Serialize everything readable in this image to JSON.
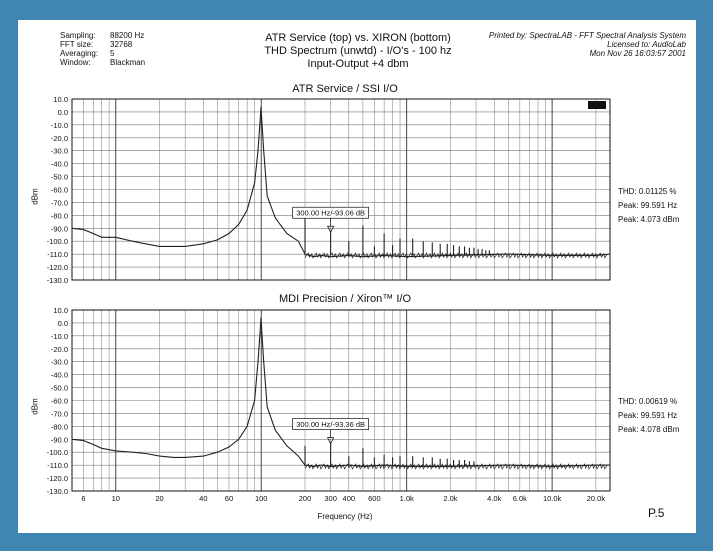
{
  "header": {
    "meta": [
      {
        "label": "Sampling:",
        "value": "88200 Hz"
      },
      {
        "label": "FFT size:",
        "value": "32768"
      },
      {
        "label": "Averaging:",
        "value": "5"
      },
      {
        "label": "Window:",
        "value": "Blackman"
      }
    ],
    "title_line1": "ATR Service (top) vs. XIRON (bottom)",
    "title_line2": "THD Spectrum (unwtd) - I/O's - 100 hz",
    "title_line3": "Input-Output  +4 dbm",
    "printed_by": "Printed by: SpectraLAB - FFT Spectral Analysis System",
    "licensed_to": "Licensed to: AudioLab",
    "print_date": "Mon Nov 26 16:03:57 2001"
  },
  "footer": {
    "page_number": "P.5"
  },
  "colors": {
    "frame": "#3f86b3",
    "trace": "#222222",
    "grid": "#777777"
  },
  "chart_data": [
    {
      "type": "line",
      "title": "ATR Service / SSI I/O",
      "xlabel": "",
      "ylabel": "dBm",
      "x_scale": "log",
      "xlim": [
        5,
        25000
      ],
      "ylim": [
        -130,
        10
      ],
      "yticks": [
        10,
        0,
        -10,
        -20,
        -30,
        -40,
        -50,
        -60,
        -70,
        -80,
        -90,
        -100,
        -110,
        -120,
        -130
      ],
      "ytick_labels": [
        "10.0",
        "0.0",
        "-10.0",
        "-20.0",
        "-30.0",
        "-40.0",
        "-50.0",
        "-60.0",
        "-70.0",
        "-80.0",
        "-90.0",
        "-100.0",
        "-110.0",
        "-120.0",
        "-130.0"
      ],
      "grid": true,
      "series": [
        {
          "values": [
            [
              5,
              -90
            ],
            [
              6,
              -91
            ],
            [
              7,
              -94
            ],
            [
              8,
              -97
            ],
            [
              10,
              -97
            ],
            [
              13,
              -100
            ],
            [
              16,
              -102
            ],
            [
              20,
              -104
            ],
            [
              25,
              -104
            ],
            [
              30,
              -104
            ],
            [
              40,
              -102
            ],
            [
              50,
              -99
            ],
            [
              60,
              -94
            ],
            [
              70,
              -87
            ],
            [
              80,
              -76
            ],
            [
              90,
              -55
            ],
            [
              95,
              -30
            ],
            [
              98,
              -8
            ],
            [
              99.6,
              4
            ],
            [
              101,
              -8
            ],
            [
              104,
              -30
            ],
            [
              110,
              -65
            ],
            [
              125,
              -82
            ],
            [
              150,
              -94
            ],
            [
              180,
              -100
            ],
            [
              200,
              -110
            ],
            [
              230,
              -112
            ],
            [
              260,
              -111
            ],
            [
              300,
              -112
            ],
            [
              400,
              -111
            ],
            [
              500,
              -112
            ],
            [
              700,
              -111
            ],
            [
              1000,
              -112
            ],
            [
              2000,
              -111
            ],
            [
              5000,
              -110
            ],
            [
              10000,
              -111
            ],
            [
              20000,
              -111
            ],
            [
              25000,
              -110
            ]
          ]
        }
      ],
      "harmonics": [
        {
          "x": 200,
          "y": -78
        },
        {
          "x": 300,
          "y": -93
        },
        {
          "x": 400,
          "y": -100
        },
        {
          "x": 500,
          "y": -88
        },
        {
          "x": 600,
          "y": -104
        },
        {
          "x": 700,
          "y": -94
        },
        {
          "x": 800,
          "y": -103
        },
        {
          "x": 900,
          "y": -98
        },
        {
          "x": 1100,
          "y": -98
        },
        {
          "x": 1300,
          "y": -100
        },
        {
          "x": 1500,
          "y": -101
        },
        {
          "x": 1700,
          "y": -102
        },
        {
          "x": 1900,
          "y": -102
        },
        {
          "x": 2100,
          "y": -103
        },
        {
          "x": 2300,
          "y": -104
        },
        {
          "x": 2500,
          "y": -104
        },
        {
          "x": 2700,
          "y": -105
        },
        {
          "x": 2900,
          "y": -105
        },
        {
          "x": 3100,
          "y": -106
        },
        {
          "x": 3300,
          "y": -106
        },
        {
          "x": 3500,
          "y": -107
        },
        {
          "x": 3700,
          "y": -107
        }
      ],
      "marker": {
        "x": 300,
        "y": -93.06,
        "label": "300.00 Hz/-93.06 dB"
      },
      "stats": [
        "THD: 0.01125 %",
        "Peak: 99.591 Hz",
        "Peak: 4.073 dBm"
      ]
    },
    {
      "type": "line",
      "title": "MDI Precision / Xiron™ I/O",
      "xlabel": "Frequency (Hz)",
      "ylabel": "dBm",
      "x_scale": "log",
      "xlim": [
        5,
        25000
      ],
      "ylim": [
        -130,
        10
      ],
      "yticks": [
        10,
        0,
        -10,
        -20,
        -30,
        -40,
        -50,
        -60,
        -70,
        -80,
        -90,
        -100,
        -110,
        -120,
        -130
      ],
      "ytick_labels": [
        "10.0",
        "0.0",
        "-10.0",
        "-20.0",
        "-30.0",
        "-40.0",
        "-50.0",
        "-60.0",
        "-70.0",
        "-80.0",
        "-90.0",
        "-100.0",
        "-110.0",
        "-120.0",
        "-130.0"
      ],
      "xticks": [
        6,
        10,
        20,
        40,
        60,
        100,
        200,
        300,
        400,
        600,
        1000,
        2000,
        4000,
        6000,
        10000,
        20000
      ],
      "xtick_labels": [
        "6",
        "10",
        "20",
        "40",
        "60",
        "100",
        "200",
        "300",
        "400",
        "600",
        "1.0k",
        "2.0k",
        "4.0k",
        "6.0k",
        "10.0k",
        "20.0k"
      ],
      "grid": true,
      "series": [
        {
          "values": [
            [
              5,
              -90
            ],
            [
              6,
              -91
            ],
            [
              7,
              -94
            ],
            [
              8,
              -97
            ],
            [
              10,
              -99
            ],
            [
              13,
              -100
            ],
            [
              16,
              -101
            ],
            [
              20,
              -103
            ],
            [
              25,
              -104
            ],
            [
              30,
              -104
            ],
            [
              40,
              -103
            ],
            [
              50,
              -100
            ],
            [
              60,
              -96
            ],
            [
              70,
              -90
            ],
            [
              80,
              -80
            ],
            [
              90,
              -60
            ],
            [
              95,
              -30
            ],
            [
              98,
              -8
            ],
            [
              99.6,
              4
            ],
            [
              101,
              -8
            ],
            [
              104,
              -30
            ],
            [
              110,
              -65
            ],
            [
              125,
              -83
            ],
            [
              150,
              -95
            ],
            [
              180,
              -103
            ],
            [
              200,
              -110
            ],
            [
              230,
              -111
            ],
            [
              260,
              -110
            ],
            [
              300,
              -111
            ],
            [
              400,
              -110
            ],
            [
              500,
              -111
            ],
            [
              700,
              -110
            ],
            [
              1000,
              -111
            ],
            [
              2000,
              -111
            ],
            [
              5000,
              -110
            ],
            [
              10000,
              -111
            ],
            [
              20000,
              -110
            ],
            [
              25000,
              -110
            ]
          ]
        }
      ],
      "harmonics": [
        {
          "x": 200,
          "y": -95
        },
        {
          "x": 300,
          "y": -93
        },
        {
          "x": 400,
          "y": -103
        },
        {
          "x": 500,
          "y": -97
        },
        {
          "x": 600,
          "y": -104
        },
        {
          "x": 700,
          "y": -102
        },
        {
          "x": 800,
          "y": -104
        },
        {
          "x": 900,
          "y": -103
        },
        {
          "x": 1100,
          "y": -103
        },
        {
          "x": 1300,
          "y": -104
        },
        {
          "x": 1500,
          "y": -104
        },
        {
          "x": 1700,
          "y": -105
        },
        {
          "x": 1900,
          "y": -105
        },
        {
          "x": 2100,
          "y": -106
        },
        {
          "x": 2300,
          "y": -106
        },
        {
          "x": 2500,
          "y": -106
        },
        {
          "x": 2700,
          "y": -107
        },
        {
          "x": 2900,
          "y": -107
        }
      ],
      "marker": {
        "x": 300,
        "y": -93.36,
        "label": "300.00 Hz/-93.36 dB"
      },
      "stats": [
        "THD: 0.00619 %",
        "Peak: 99.591 Hz",
        "Peak: 4.078 dBm"
      ]
    }
  ]
}
